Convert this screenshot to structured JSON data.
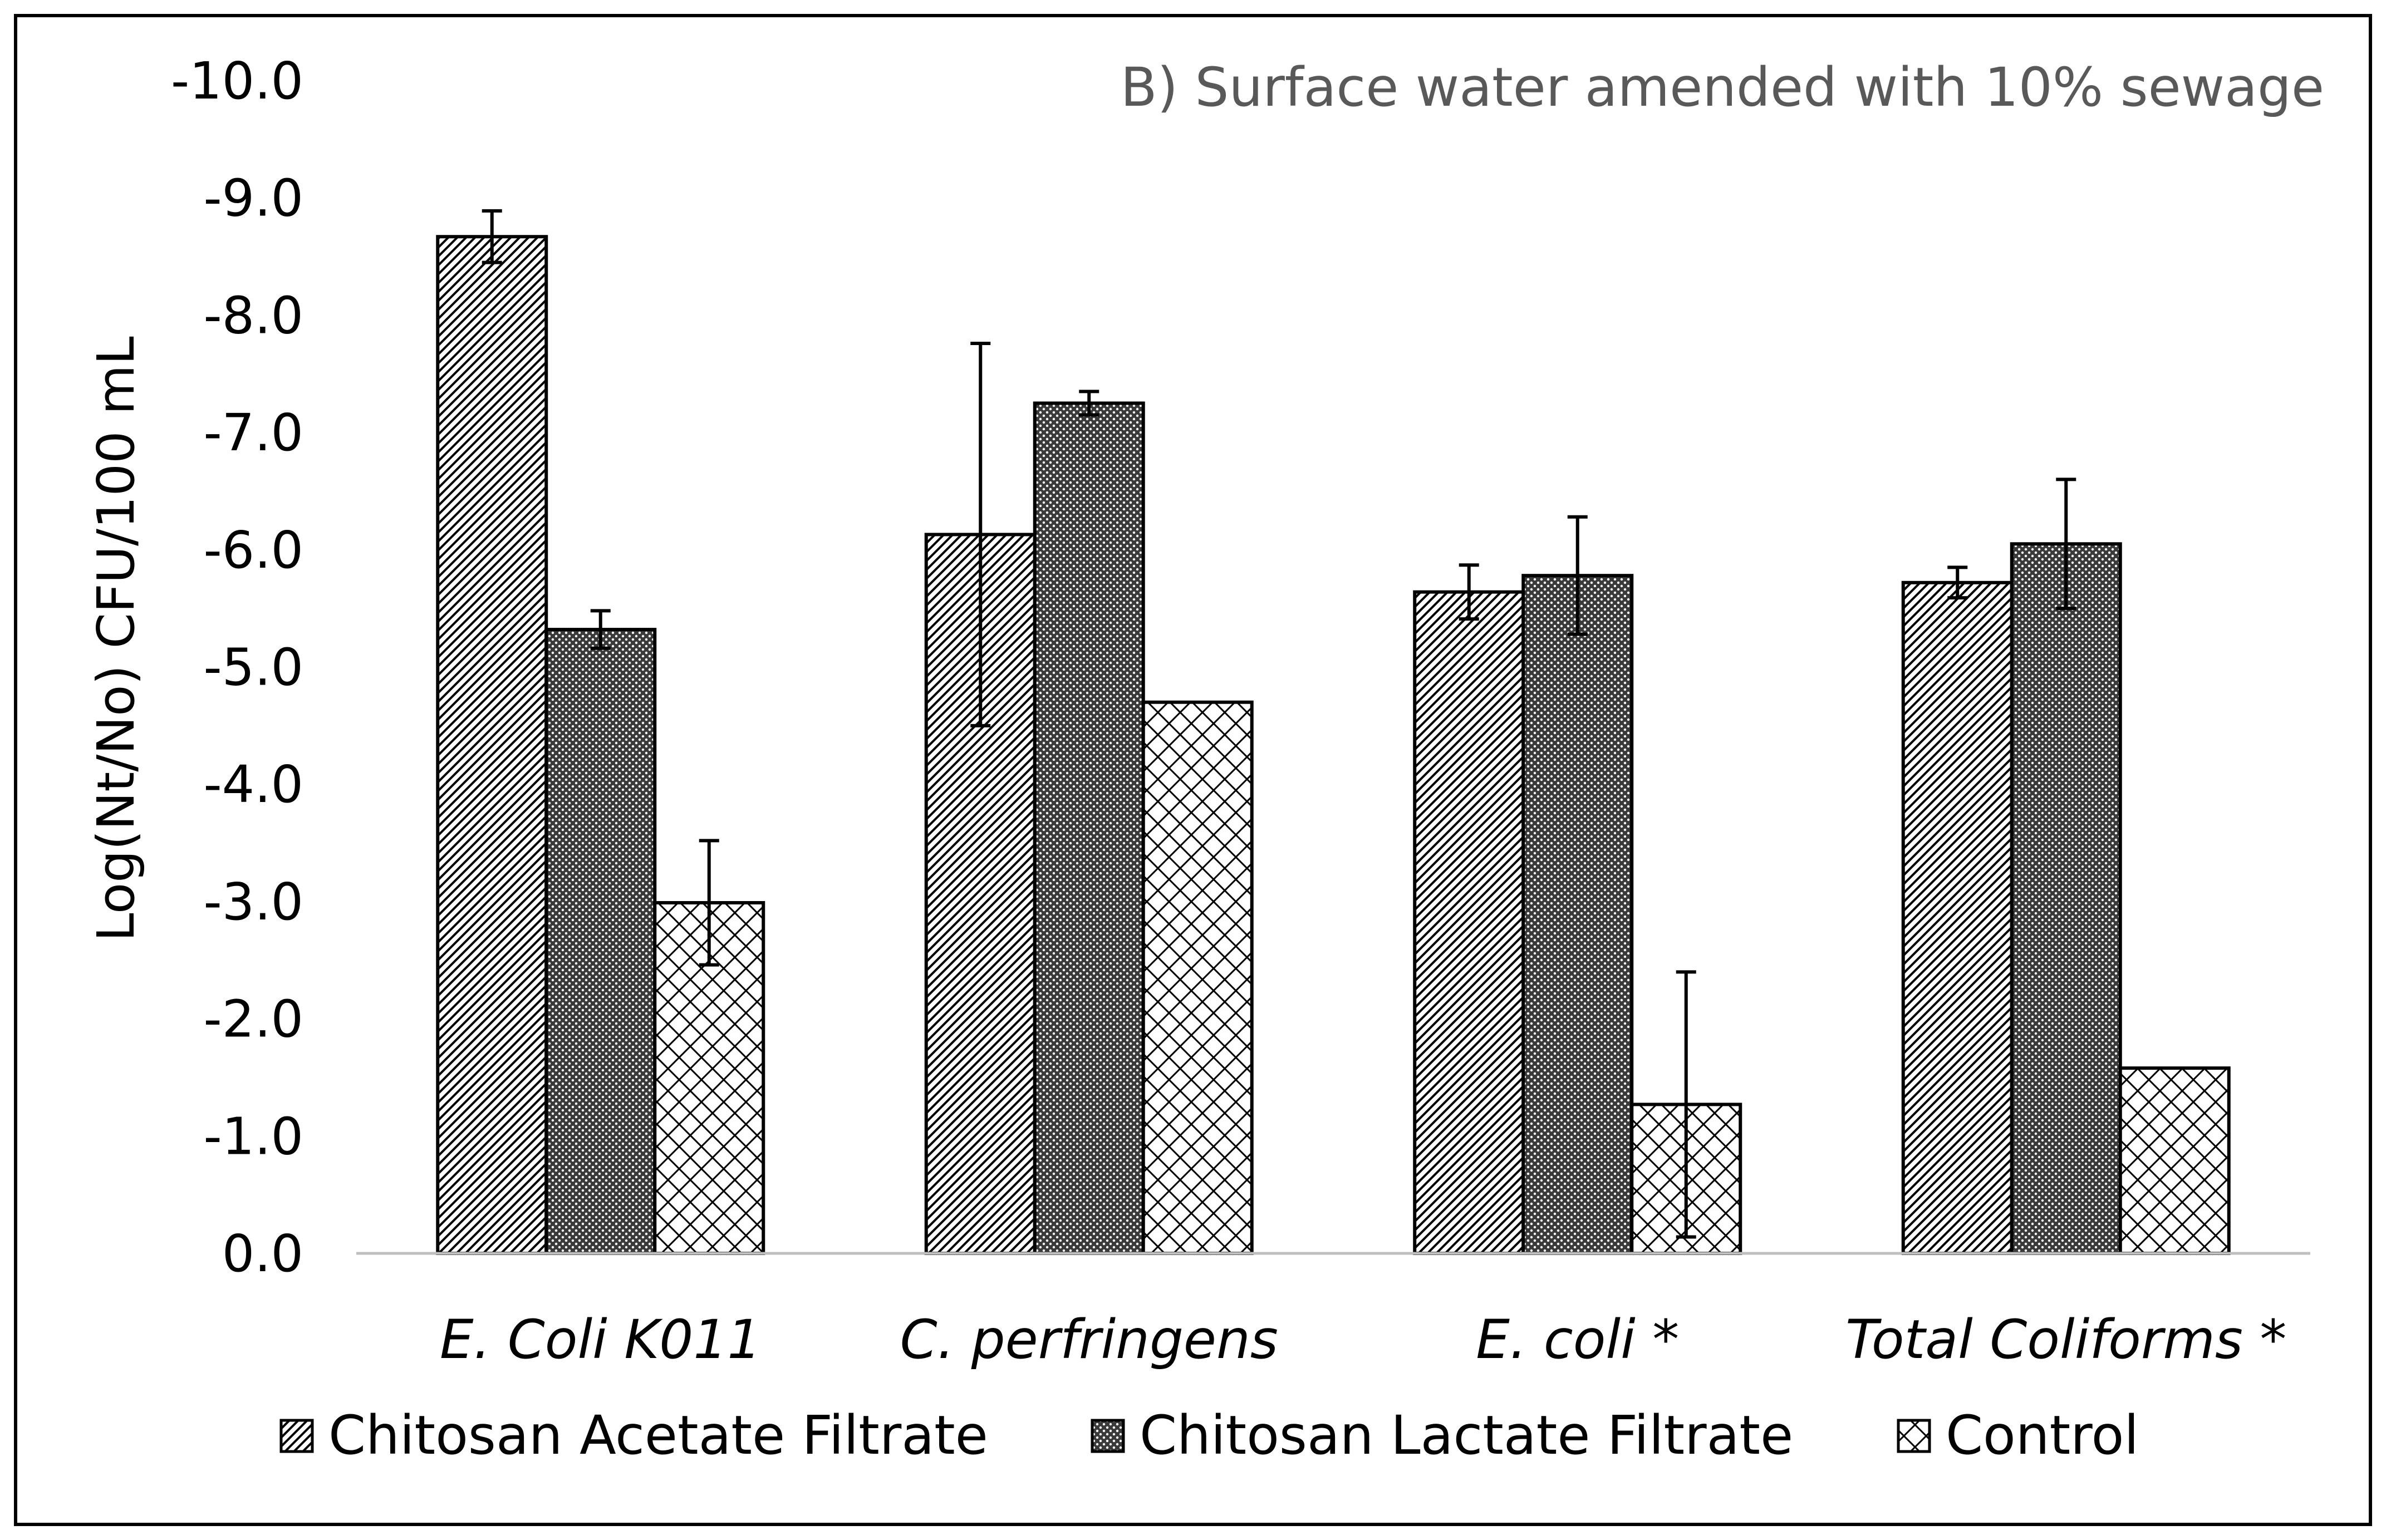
{
  "chart_data": {
    "type": "bar",
    "title": "B) Surface water amended with 10% sewage",
    "ylabel": "Log(Nt/No) CFU/100 mL",
    "xlabel": "",
    "ylim": [
      0,
      -10
    ],
    "yticks": [
      "0.0",
      "-1.0",
      "-2.0",
      "-3.0",
      "-4.0",
      "-5.0",
      "-6.0",
      "-7.0",
      "-8.0",
      "-9.0",
      "-10.0"
    ],
    "categories": [
      "E. Coli K011",
      "C. perfringens",
      "E. coli *",
      "Total Coliforms *"
    ],
    "series": [
      {
        "name": "Chitosan Acetate Filtrate",
        "pattern": "diagonal",
        "values": [
          -8.67,
          -6.13,
          -5.64,
          -5.72
        ],
        "errors": [
          0.22,
          1.63,
          0.23,
          0.13
        ]
      },
      {
        "name": "Chitosan Lactate Filtrate",
        "pattern": "dots",
        "values": [
          -5.32,
          -7.25,
          -5.78,
          -6.05
        ],
        "errors": [
          0.16,
          0.1,
          0.5,
          0.55
        ]
      },
      {
        "name": "Control",
        "pattern": "crosshatch",
        "values": [
          -2.99,
          -4.7,
          -1.27,
          -1.58
        ],
        "errors": [
          0.53,
          0,
          1.13,
          0
        ]
      }
    ],
    "legend": "bottom",
    "grid": false
  },
  "colors": {
    "bar_stroke": "#000000",
    "axis": "#bfbfbf",
    "title_text": "#595959",
    "text": "#000000",
    "frame": "#000000"
  }
}
